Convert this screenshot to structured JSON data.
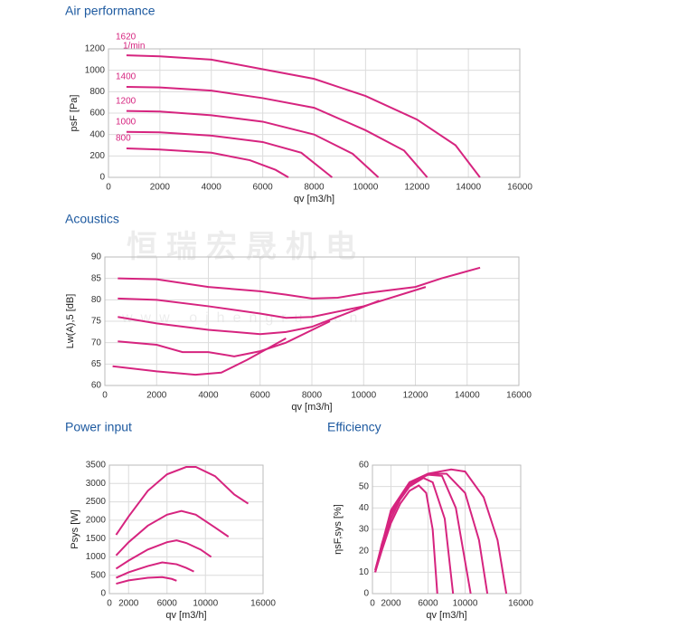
{
  "watermark": {
    "brand": "恒瑞宏晟机电",
    "url": "www.ojhengrui.cn"
  },
  "chart_data": [
    {
      "type": "line",
      "title": "Air performance",
      "x_label": "qv [m3/h]",
      "y_label": "psF [Pa]",
      "xlim": [
        0,
        16000
      ],
      "xticks": [
        0,
        2000,
        4000,
        6000,
        8000,
        10000,
        12000,
        14000,
        16000
      ],
      "ylim": [
        0,
        1200
      ],
      "yticks": [
        0,
        200,
        400,
        600,
        800,
        1000,
        1200
      ],
      "grid": true,
      "annotation": "1/min",
      "series": [
        {
          "name": "1620",
          "color": "#d6247f",
          "x": [
            700,
            2000,
            4000,
            6000,
            8000,
            10000,
            12000,
            13500,
            14450
          ],
          "values": [
            1140,
            1130,
            1100,
            1010,
            920,
            760,
            540,
            300,
            0
          ]
        },
        {
          "name": "1400",
          "color": "#d6247f",
          "x": [
            700,
            2000,
            4000,
            6000,
            8000,
            10000,
            11500,
            12400
          ],
          "values": [
            845,
            840,
            810,
            740,
            650,
            440,
            250,
            0
          ]
        },
        {
          "name": "1200",
          "color": "#d6247f",
          "x": [
            700,
            2000,
            4000,
            6000,
            8000,
            9500,
            10500
          ],
          "values": [
            620,
            615,
            580,
            520,
            400,
            220,
            0
          ]
        },
        {
          "name": "1000",
          "color": "#d6247f",
          "x": [
            700,
            2000,
            4000,
            6000,
            7500,
            8700
          ],
          "values": [
            425,
            420,
            390,
            330,
            230,
            0
          ]
        },
        {
          "name": "800",
          "color": "#d6247f",
          "x": [
            700,
            2000,
            4000,
            5500,
            6500,
            7000
          ],
          "values": [
            270,
            260,
            230,
            160,
            70,
            0
          ]
        }
      ]
    },
    {
      "type": "line",
      "title": "Acoustics",
      "x_label": "qv [m3/h]",
      "y_label": "Lw(A),5 [dB]",
      "xlim": [
        0,
        16000
      ],
      "xticks": [
        0,
        2000,
        4000,
        6000,
        8000,
        10000,
        12000,
        14000,
        16000
      ],
      "ylim": [
        60,
        90
      ],
      "yticks": [
        60,
        65,
        70,
        75,
        80,
        85,
        90
      ],
      "grid": true,
      "series": [
        {
          "color": "#d6247f",
          "x": [
            500,
            2000,
            4000,
            6000,
            7000,
            8000,
            9000,
            10000,
            12000,
            13000,
            14500
          ],
          "values": [
            85,
            84.8,
            83,
            82,
            81.2,
            80.3,
            80.5,
            81.5,
            83,
            85,
            87.5
          ]
        },
        {
          "color": "#d6247f",
          "x": [
            500,
            2000,
            4000,
            6000,
            7000,
            8000,
            10000,
            12400
          ],
          "values": [
            80.3,
            80,
            78.5,
            76.8,
            75.8,
            76,
            78.5,
            83
          ]
        },
        {
          "color": "#d6247f",
          "x": [
            500,
            2000,
            4000,
            6000,
            7000,
            8000,
            10600
          ],
          "values": [
            76,
            74.5,
            73,
            72,
            72.5,
            73.7,
            79.8
          ]
        },
        {
          "color": "#d6247f",
          "x": [
            500,
            2000,
            3000,
            4000,
            5000,
            6000,
            7000,
            8700
          ],
          "values": [
            70.3,
            69.5,
            67.8,
            67.8,
            66.8,
            68,
            70,
            75
          ]
        },
        {
          "color": "#d6247f",
          "x": [
            300,
            2000,
            3500,
            4500,
            5500,
            7000
          ],
          "values": [
            64.5,
            63.3,
            62.5,
            63,
            66,
            71
          ]
        }
      ]
    },
    {
      "type": "line",
      "title": "Power input",
      "x_label": "qv [m3/h]",
      "y_label": "Psys [W]",
      "xlim": [
        0,
        16000
      ],
      "xticks": [
        0,
        2000,
        6000,
        10000,
        16000
      ],
      "ylim": [
        0,
        3500
      ],
      "yticks": [
        0,
        500,
        1000,
        1500,
        2000,
        2500,
        3000,
        3500
      ],
      "grid": true,
      "series": [
        {
          "color": "#d6247f",
          "x": [
            700,
            2000,
            4000,
            6000,
            8000,
            9000,
            11000,
            13000,
            14450
          ],
          "values": [
            1600,
            2100,
            2800,
            3250,
            3450,
            3450,
            3200,
            2700,
            2450
          ]
        },
        {
          "color": "#d6247f",
          "x": [
            700,
            2000,
            4000,
            6000,
            7500,
            9000,
            11000,
            12400
          ],
          "values": [
            1040,
            1400,
            1850,
            2150,
            2250,
            2150,
            1800,
            1550
          ]
        },
        {
          "color": "#d6247f",
          "x": [
            700,
            2000,
            4000,
            6000,
            7000,
            8000,
            9500,
            10600
          ],
          "values": [
            680,
            900,
            1200,
            1400,
            1450,
            1380,
            1200,
            1000
          ]
        },
        {
          "color": "#d6247f",
          "x": [
            700,
            2000,
            4000,
            5500,
            7000,
            8000,
            8800
          ],
          "values": [
            430,
            580,
            750,
            850,
            800,
            700,
            600
          ]
        },
        {
          "color": "#d6247f",
          "x": [
            700,
            2000,
            4000,
            5500,
            6500,
            7000
          ],
          "values": [
            270,
            360,
            430,
            450,
            400,
            350
          ]
        }
      ]
    },
    {
      "type": "line",
      "title": "Efficiency",
      "x_label": "qv [m3/h]",
      "y_label": "ηsF,sys [%]",
      "xlim": [
        0,
        16000
      ],
      "xticks": [
        0,
        2000,
        6000,
        10000,
        16000
      ],
      "ylim": [
        0,
        60
      ],
      "yticks": [
        0,
        10,
        20,
        30,
        40,
        50,
        60
      ],
      "grid": true,
      "series": [
        {
          "color": "#d6247f",
          "x": [
            300,
            2000,
            4000,
            6000,
            8500,
            10000,
            12000,
            13500,
            14450
          ],
          "values": [
            11,
            39,
            52,
            56,
            58,
            57,
            45,
            25,
            0
          ]
        },
        {
          "color": "#d6247f",
          "x": [
            300,
            2000,
            4000,
            6000,
            8000,
            10000,
            11500,
            12400
          ],
          "values": [
            11,
            38,
            51,
            56,
            56,
            47,
            25,
            0
          ]
        },
        {
          "color": "#d6247f",
          "x": [
            300,
            1000,
            2000,
            3000,
            4000,
            6000,
            7500,
            9000,
            10600
          ],
          "values": [
            10,
            23,
            37,
            45,
            51,
            55.5,
            55,
            40,
            0
          ]
        },
        {
          "color": "#d6247f",
          "x": [
            300,
            1000,
            2000,
            3000,
            4000,
            5500,
            6500,
            7800,
            8700
          ],
          "values": [
            10,
            22,
            35,
            44,
            50,
            54,
            52,
            35,
            0
          ]
        },
        {
          "color": "#d6247f",
          "x": [
            300,
            1000,
            2000,
            3000,
            4000,
            5000,
            5800,
            6500,
            7000
          ],
          "values": [
            10,
            20,
            33,
            42,
            48,
            50.5,
            47,
            30,
            0
          ]
        }
      ]
    }
  ]
}
